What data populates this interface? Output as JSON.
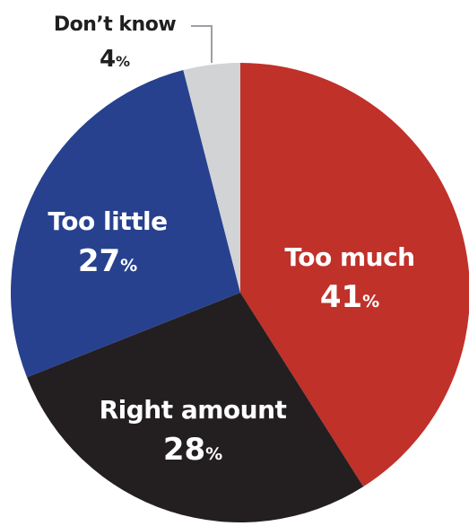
{
  "chart_data": {
    "type": "pie",
    "slices": [
      {
        "label": "Too much",
        "value": 41,
        "color": "#c0312a"
      },
      {
        "label": "Right amount",
        "value": 28,
        "color": "#231f20"
      },
      {
        "label": "Too little",
        "value": 27,
        "color": "#27418f"
      },
      {
        "label": "Don’t know",
        "value": 4,
        "color": "#d1d3d4"
      }
    ],
    "unit": "%"
  }
}
